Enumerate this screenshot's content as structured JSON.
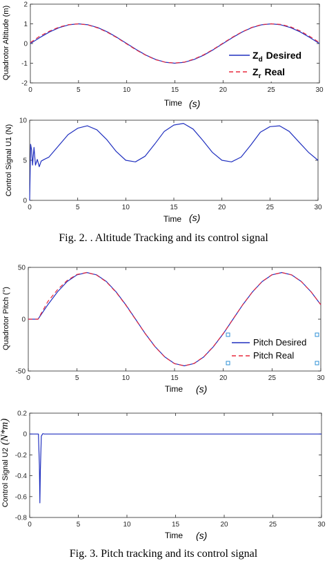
{
  "chart_data": [
    {
      "type": "line",
      "figure": "Fig. 2",
      "ylabel": "Quadrotor Altitude (m)",
      "xlabel": "Time",
      "xlabel_unit": "(s)",
      "xlim": [
        0,
        30
      ],
      "ylim": [
        -2,
        2
      ],
      "xticks": [
        0,
        5,
        10,
        15,
        20,
        25,
        30
      ],
      "yticks": [
        -2,
        -1,
        0,
        1,
        2
      ],
      "legend_position": "lower-right",
      "legend": [
        {
          "main": "Z",
          "sub": "d",
          "label": "Desired",
          "color": "#1f2fbf",
          "dash": "solid"
        },
        {
          "main": "Z",
          "sub": "r",
          "label": "Real",
          "color": "#e8283c",
          "dash": "dashed"
        }
      ],
      "series": [
        {
          "name": "Desired",
          "color": "#1f2fbf",
          "dash": "solid",
          "x": [
            0,
            1,
            2,
            3,
            4,
            5,
            6,
            7,
            8,
            9,
            10,
            11,
            12,
            13,
            14,
            15,
            16,
            17,
            18,
            19,
            20,
            21,
            22,
            23,
            24,
            25,
            26,
            27,
            28,
            29,
            30
          ],
          "y": [
            0,
            0.31,
            0.59,
            0.81,
            0.95,
            1.0,
            0.95,
            0.81,
            0.59,
            0.31,
            0,
            -0.31,
            -0.59,
            -0.81,
            -0.95,
            -1.0,
            -0.95,
            -0.81,
            -0.59,
            -0.31,
            0,
            0.31,
            0.59,
            0.81,
            0.95,
            1.0,
            0.95,
            0.81,
            0.59,
            0.31,
            0
          ]
        },
        {
          "name": "Real",
          "color": "#e8283c",
          "dash": "dashed",
          "x": [
            0,
            1,
            2,
            3,
            4,
            5,
            6,
            7,
            8,
            9,
            10,
            11,
            12,
            13,
            14,
            15,
            16,
            17,
            18,
            19,
            20,
            21,
            22,
            23,
            24,
            25,
            26,
            27,
            28,
            29,
            30
          ],
          "y": [
            0.05,
            0.38,
            0.63,
            0.84,
            0.96,
            1.0,
            0.94,
            0.79,
            0.57,
            0.29,
            -0.02,
            -0.33,
            -0.6,
            -0.82,
            -0.95,
            -0.99,
            -0.94,
            -0.79,
            -0.57,
            -0.29,
            0.02,
            0.33,
            0.6,
            0.82,
            0.96,
            1.0,
            0.97,
            0.85,
            0.64,
            0.36,
            0.05
          ]
        }
      ]
    },
    {
      "type": "line",
      "figure": "Fig. 2",
      "ylabel": "Control Signal U1 (N)",
      "xlabel": "Time",
      "xlabel_unit": "(s)",
      "xlim": [
        0,
        30
      ],
      "ylim": [
        0,
        10
      ],
      "xticks": [
        0,
        5,
        10,
        15,
        20,
        25,
        30
      ],
      "yticks": [
        0,
        5,
        10
      ],
      "series": [
        {
          "color": "#1f2fbf",
          "x": [
            0,
            0.1,
            0.2,
            0.3,
            0.45,
            0.6,
            0.8,
            1.0,
            1.2,
            1.5,
            2,
            3,
            4,
            5,
            6,
            7,
            8,
            9,
            10,
            11,
            12,
            13,
            14,
            15,
            16,
            17,
            18,
            19,
            20,
            21,
            22,
            23,
            24,
            25,
            26,
            27,
            28,
            29,
            30
          ],
          "y": [
            0,
            7.0,
            6.3,
            4.4,
            6.6,
            4.4,
            5.1,
            4.2,
            4.9,
            5.1,
            5.4,
            6.8,
            8.2,
            9.0,
            9.3,
            8.8,
            7.6,
            6.1,
            5.0,
            4.8,
            5.5,
            7.0,
            8.6,
            9.4,
            9.6,
            8.9,
            7.5,
            6.0,
            5.0,
            4.8,
            5.4,
            6.9,
            8.5,
            9.2,
            9.3,
            8.6,
            7.3,
            6.0,
            5.0
          ]
        }
      ]
    },
    {
      "type": "line",
      "figure": "Fig. 3",
      "ylabel": "Quadrotor Pitch (°)",
      "xlabel": "Time",
      "xlabel_unit": "(s)",
      "xlim": [
        0,
        30
      ],
      "ylim": [
        -50,
        50
      ],
      "xticks": [
        0,
        5,
        10,
        15,
        20,
        25,
        30
      ],
      "yticks": [
        -50,
        0,
        50
      ],
      "legend_position": "lower-right",
      "legend": [
        {
          "label": "Pitch Desired",
          "color": "#1f2fbf",
          "dash": "solid"
        },
        {
          "label": "Pitch Real",
          "color": "#e8283c",
          "dash": "dashed"
        }
      ],
      "series": [
        {
          "name": "Pitch Desired",
          "color": "#1f2fbf",
          "dash": "solid",
          "x": [
            0,
            1,
            2,
            3,
            4,
            5,
            6,
            7,
            8,
            9,
            10,
            11,
            12,
            13,
            14,
            15,
            16,
            17,
            18,
            19,
            20,
            21,
            22,
            23,
            24,
            25,
            26,
            27,
            28,
            29,
            30
          ],
          "y": [
            0,
            0,
            13.9,
            26.4,
            36.4,
            42.8,
            45,
            42.8,
            36.4,
            26.4,
            13.9,
            0,
            -13.9,
            -26.4,
            -36.4,
            -42.8,
            -45,
            -42.8,
            -36.4,
            -26.4,
            -13.9,
            0,
            13.9,
            26.4,
            36.4,
            42.8,
            45,
            42.8,
            36.4,
            26.4,
            13.9
          ]
        },
        {
          "name": "Pitch Real",
          "color": "#e8283c",
          "dash": "dashed",
          "x": [
            0,
            1,
            2,
            3,
            4,
            5,
            6,
            7,
            8,
            9,
            10,
            11,
            12,
            13,
            14,
            15,
            16,
            17,
            18,
            19,
            20,
            21,
            22,
            23,
            24,
            25,
            26,
            27,
            28,
            29,
            30
          ],
          "y": [
            0,
            0,
            17,
            28.5,
            37.5,
            43.2,
            45,
            42.6,
            36.1,
            26.1,
            13.6,
            -0.3,
            -14.1,
            -26.6,
            -36.6,
            -42.9,
            -45,
            -42.7,
            -36.2,
            -26.2,
            -13.7,
            0.2,
            14.1,
            26.6,
            36.6,
            42.9,
            45,
            42.7,
            36.3,
            26.4,
            14
          ]
        }
      ]
    },
    {
      "type": "line",
      "figure": "Fig. 3",
      "ylabel": "Control Signal U2",
      "ylabel_unit": "(N*m)",
      "xlabel": "Time",
      "xlabel_unit": "(s)",
      "xlim": [
        0,
        30
      ],
      "ylim": [
        -0.8,
        0.2
      ],
      "xticks": [
        0,
        5,
        10,
        15,
        20,
        25,
        30
      ],
      "yticks": [
        -0.8,
        -0.6,
        -0.4,
        -0.2,
        0,
        0.2
      ],
      "series": [
        {
          "color": "#1f2fbf",
          "x": [
            0,
            0.9,
            1.0,
            1.05,
            1.1,
            1.2,
            1.35,
            1.5,
            30
          ],
          "y": [
            0,
            0,
            -0.3,
            -0.66,
            -0.35,
            -0.02,
            0.003,
            0,
            0
          ]
        }
      ]
    }
  ],
  "captions": {
    "fig2": "Fig. 2.   . Altitude Tracking and its control signal",
    "fig3": "Fig. 3.   Pitch tracking and its control signal"
  }
}
